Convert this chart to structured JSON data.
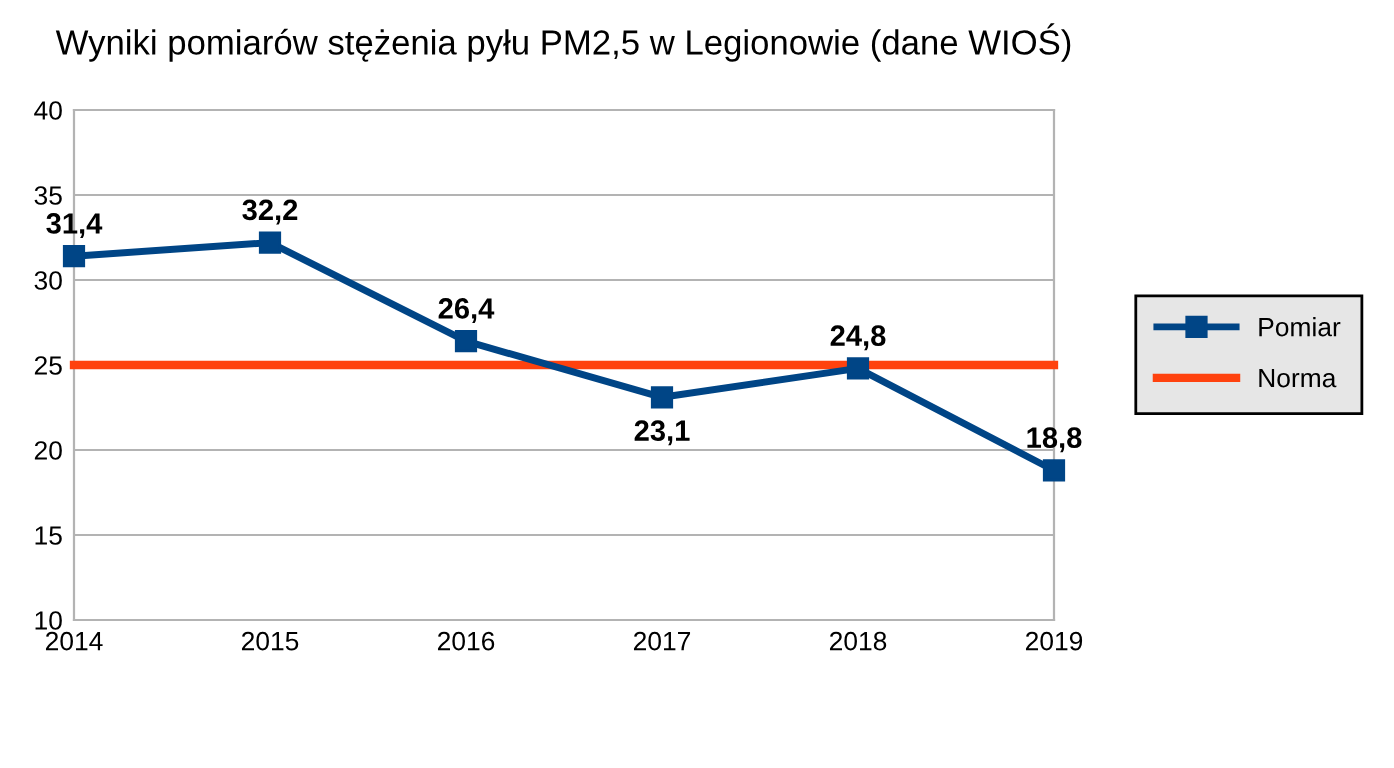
{
  "chart_data": {
    "type": "line",
    "title": "Wyniki pomiarów stężenia pyłu PM2,5 w Legionowie (dane WIOŚ)",
    "x": [
      2014,
      2015,
      2016,
      2017,
      2018,
      2019
    ],
    "series": [
      {
        "name": "Pomiar",
        "color": "#004586",
        "marker": "square",
        "values": [
          31.4,
          32.2,
          26.4,
          23.1,
          24.8,
          18.8
        ],
        "value_labels": [
          "31,4",
          "32,2",
          "26,4",
          "23,1",
          "24,8",
          "18,8"
        ]
      },
      {
        "name": "Norma",
        "color": "#ff420e",
        "marker": "none",
        "x": [
          2014,
          2019
        ],
        "values": [
          25,
          25
        ]
      }
    ],
    "xlim": [
      2014,
      2019
    ],
    "xticks": [
      2014,
      2015,
      2016,
      2017,
      2018,
      2019
    ],
    "ylim": [
      10,
      40
    ],
    "yticks": [
      10,
      15,
      20,
      25,
      30,
      35,
      40
    ],
    "grid": "y",
    "legend": "right"
  }
}
